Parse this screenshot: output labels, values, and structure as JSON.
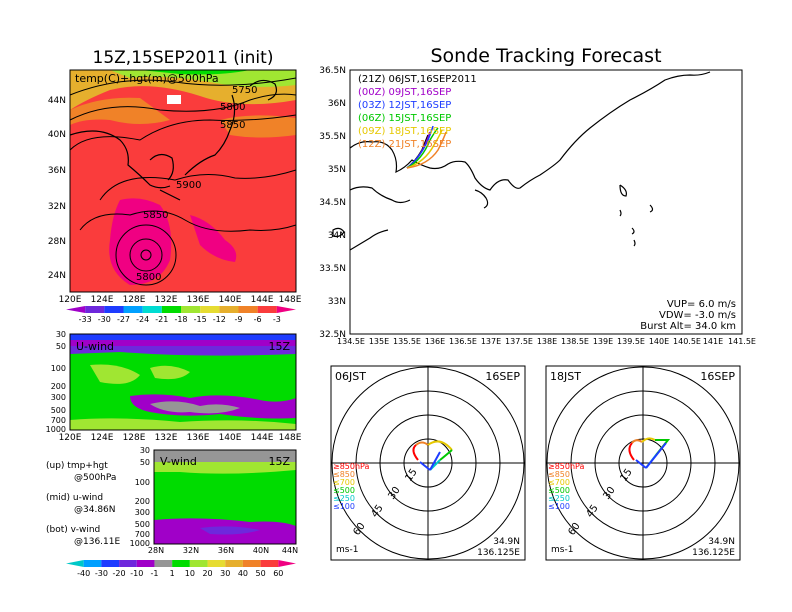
{
  "titles": {
    "left": "15Z,15SEP2011 (init)",
    "right": "Sonde Tracking Forecast"
  },
  "map500": {
    "label": "temp(C)+hgt(m)@500hPa",
    "contour_labels": [
      "5750",
      "5800",
      "5850",
      "5900",
      "5850",
      "5800"
    ],
    "lat_ticks": [
      "44N",
      "40N",
      "36N",
      "32N",
      "28N",
      "24N"
    ],
    "lon_ticks": [
      "120E",
      "124E",
      "128E",
      "132E",
      "136E",
      "140E",
      "144E",
      "148E"
    ],
    "colorbar": [
      "-33",
      "-30",
      "-27",
      "-24",
      "-21",
      "-18",
      "-15",
      "-12",
      "-9",
      "-6",
      "-3"
    ]
  },
  "uwind": {
    "label": "U-wind",
    "time": "15Z",
    "p_ticks": [
      "30",
      "50",
      "100",
      "200",
      "300",
      "500",
      "700",
      "1000"
    ],
    "lon_ticks": [
      "120E",
      "124E",
      "128E",
      "132E",
      "136E",
      "140E",
      "144E",
      "148E"
    ]
  },
  "vwind": {
    "label": "V-wind",
    "time": "15Z",
    "p_ticks": [
      "30",
      "50",
      "100",
      "200",
      "300",
      "500",
      "700",
      "1000"
    ],
    "lat_ticks": [
      "28N",
      "32N",
      "36N",
      "40N",
      "44N"
    ],
    "colorbar": [
      "-40",
      "-30",
      "-20",
      "-10",
      "-1",
      "1",
      "10",
      "20",
      "30",
      "40",
      "50",
      "60"
    ]
  },
  "notes": {
    "up1": "(up)  tmp+hgt",
    "up2": "@500hPa",
    "mid1": "(mid)  u-wind",
    "mid2": "@34.86N",
    "bot1": "(bot)  v-wind",
    "bot2": "@136.11E"
  },
  "track": {
    "legend": [
      {
        "text": "(21Z)  06JST,16SEP2011",
        "color": "#000000"
      },
      {
        "text": "(00Z)  09JST,16SEP",
        "color": "#a000c8"
      },
      {
        "text": "(03Z)  12JST,16SEP",
        "color": "#1e3cff"
      },
      {
        "text": "(06Z)  15JST,16SEP",
        "color": "#00c800"
      },
      {
        "text": "(09Z)  18JST,16SEP",
        "color": "#e6c800"
      },
      {
        "text": "(12Z)  21JST,16SEP",
        "color": "#f08228"
      }
    ],
    "lat_ticks": [
      "36.5N",
      "36N",
      "35.5N",
      "35N",
      "34.5N",
      "34N",
      "33.5N",
      "33N",
      "32.5N"
    ],
    "lon_ticks": [
      "134.5E",
      "135E",
      "135.5E",
      "136E",
      "136.5E",
      "137E",
      "137.5E",
      "138E",
      "138.5E",
      "139E",
      "139.5E",
      "140E",
      "140.5E",
      "141E",
      "141.5E"
    ],
    "params": [
      "VUP=  6.0  m/s",
      "VDW= -3.0  m/s",
      "Burst Alt=  34.0  km"
    ]
  },
  "hodo1": {
    "time": "06JST",
    "date": "16SEP",
    "rings": [
      "15",
      "30",
      "45",
      "60"
    ],
    "levels": [
      "≥850hPa",
      "≤850",
      "≤700",
      "≤500",
      "≤250",
      "≤100"
    ],
    "unit": "ms-1",
    "lat": "34.9N",
    "lon": "136.125E"
  },
  "hodo2": {
    "time": "18JST",
    "date": "16SEP",
    "rings": [
      "15",
      "30",
      "45",
      "60"
    ],
    "levels": [
      "≥850hPa",
      "≤850",
      "≤700",
      "≤500",
      "≤250",
      "≤100"
    ],
    "unit": "ms-1",
    "lat": "34.9N",
    "lon": "136.125E"
  },
  "colors": {
    "level_colors": [
      "#ff0000",
      "#f08228",
      "#e6c800",
      "#00c800",
      "#00c8c8",
      "#1e3cff"
    ],
    "temp_scale": [
      "#a000c8",
      "#6e28dc",
      "#1e3cff",
      "#00a0ff",
      "#00dcd2",
      "#00dc00",
      "#a0e632",
      "#e6dc32",
      "#e6af2d",
      "#f08228",
      "#fa3c3c",
      "#f00082"
    ],
    "wind_scale": [
      "#00c8c8",
      "#00a0ff",
      "#1e3cff",
      "#6e28dc",
      "#a000c8",
      "#969696",
      "#00dc00",
      "#a0e632",
      "#e6dc32",
      "#e6af2d",
      "#f08228",
      "#fa3c3c",
      "#f00082"
    ]
  }
}
